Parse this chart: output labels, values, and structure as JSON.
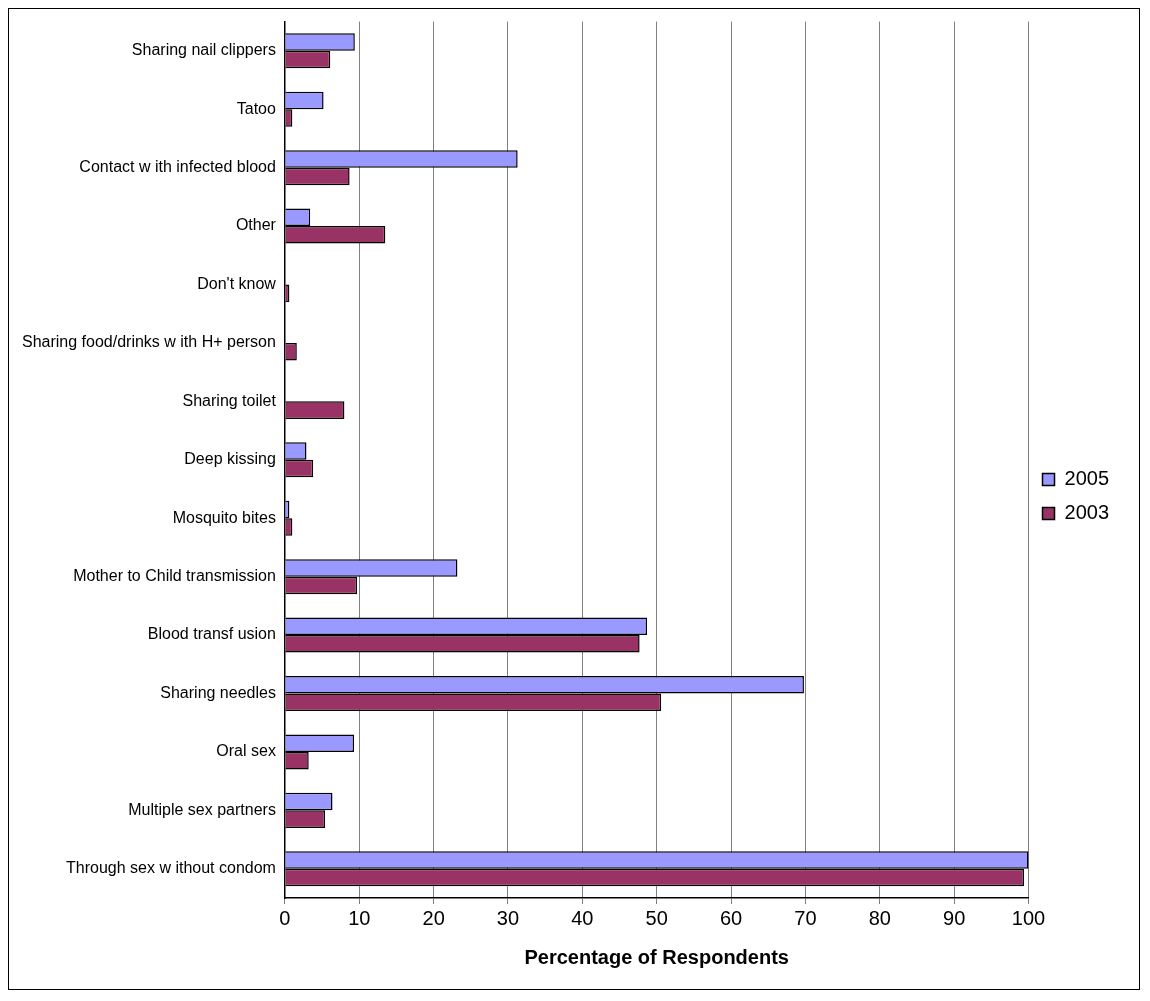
{
  "chart_data": {
    "type": "bar",
    "orientation": "horizontal",
    "xlabel": "Percentage of Respondents",
    "categories": [
      "Sharing nail clippers",
      "Tatoo",
      "Contact w ith infected blood",
      "Other",
      "Don't know",
      "Sharing food/drinks w ith H+ person",
      "Sharing toilet",
      "Deep kissing",
      "Mosquito bites",
      "Mother to Child transmission",
      "Blood transf usion",
      "Sharing needles",
      "Oral sex",
      "Multiple sex partners",
      "Through sex w ithout condom"
    ],
    "series": [
      {
        "name": "2005",
        "color": "#9999ff",
        "values": [
          9.4,
          5.2,
          31.3,
          3.4,
          null,
          null,
          null,
          2.9,
          0.6,
          23.2,
          48.7,
          69.8,
          9.3,
          6.4,
          100
        ]
      },
      {
        "name": "2003",
        "color": "#993366",
        "values": [
          6.1,
          1.0,
          8.7,
          13.5,
          0.6,
          1.6,
          8.0,
          3.8,
          1.0,
          9.7,
          47.7,
          50.6,
          3.2,
          5.4,
          99.4
        ]
      }
    ],
    "xlim": [
      0,
      100
    ],
    "xticks": [
      0,
      10,
      20,
      30,
      40,
      50,
      60,
      70,
      80,
      90,
      100
    ],
    "grid": "x",
    "legend": "right"
  }
}
